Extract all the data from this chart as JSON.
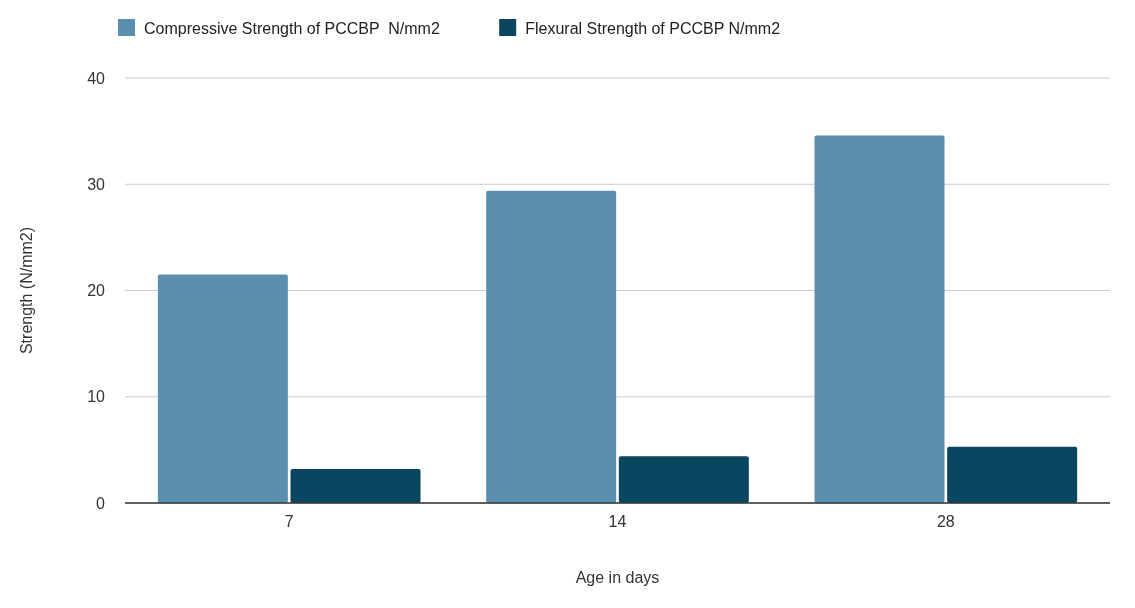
{
  "chart_data": {
    "type": "bar",
    "xlabel": "Age in days",
    "ylabel": "Strength (N/mm2)",
    "categories": [
      "7",
      "14",
      "28"
    ],
    "series": [
      {
        "name": "Compressive Strength of PCCBP  N/mm2",
        "color": "#5a8fad",
        "values": [
          21.5,
          29.4,
          34.6
        ]
      },
      {
        "name": "Flexural Strength of PCCBP N/mm2",
        "color": "#0b4660",
        "values": [
          3.2,
          4.4,
          5.3
        ]
      }
    ],
    "ylim": [
      0,
      40
    ],
    "yticks": [
      0,
      10,
      20,
      30,
      40
    ],
    "grid": "y",
    "legend": "top"
  }
}
